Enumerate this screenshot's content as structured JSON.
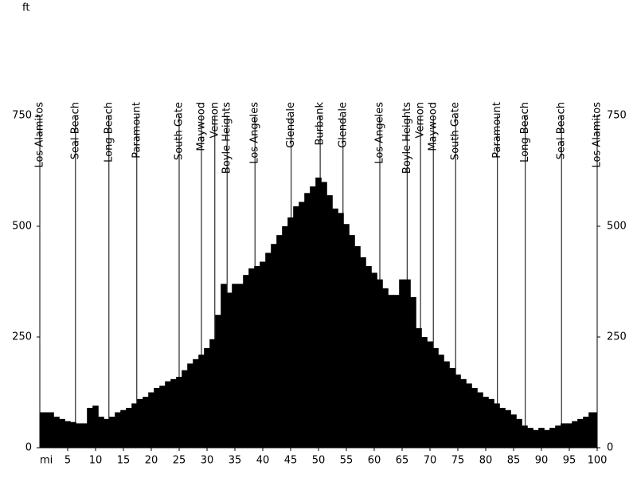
{
  "chart_data": {
    "type": "area",
    "xlabel": "mi",
    "ylabel": "ft",
    "xlim": [
      0,
      100
    ],
    "ylim": [
      0,
      750
    ],
    "xticks": [
      5,
      10,
      15,
      20,
      25,
      30,
      35,
      40,
      45,
      50,
      55,
      60,
      65,
      70,
      75,
      80,
      85,
      90,
      95,
      100
    ],
    "yticks": [
      0,
      250,
      500,
      750
    ],
    "color": "#000000",
    "x": [
      0,
      1,
      2,
      3,
      4,
      5,
      6,
      7,
      8,
      9,
      10,
      11,
      12,
      13,
      14,
      15,
      16,
      17,
      18,
      19,
      20,
      21,
      22,
      23,
      24,
      25,
      26,
      27,
      28,
      29,
      30,
      31,
      32,
      33,
      34,
      35,
      36,
      37,
      38,
      39,
      40,
      41,
      42,
      43,
      44,
      45,
      46,
      47,
      48,
      49,
      50,
      51,
      52,
      53,
      54,
      55,
      56,
      57,
      58,
      59,
      60,
      61,
      62,
      63,
      64,
      65,
      66,
      67,
      68,
      69,
      70,
      71,
      72,
      73,
      74,
      75,
      76,
      77,
      78,
      79,
      80,
      81,
      82,
      83,
      84,
      85,
      86,
      87,
      88,
      89,
      90,
      91,
      92,
      93,
      94,
      95,
      96,
      97,
      98,
      99,
      100
    ],
    "values": [
      80,
      80,
      80,
      70,
      65,
      60,
      58,
      55,
      55,
      90,
      95,
      70,
      65,
      70,
      80,
      85,
      90,
      100,
      110,
      115,
      125,
      135,
      140,
      150,
      155,
      160,
      175,
      190,
      200,
      210,
      225,
      245,
      300,
      370,
      350,
      370,
      370,
      390,
      405,
      410,
      420,
      440,
      460,
      480,
      500,
      520,
      545,
      555,
      575,
      590,
      610,
      600,
      570,
      540,
      530,
      505,
      480,
      455,
      430,
      410,
      395,
      380,
      360,
      345,
      345,
      380,
      380,
      340,
      270,
      250,
      240,
      225,
      210,
      195,
      180,
      165,
      155,
      145,
      135,
      125,
      115,
      110,
      100,
      90,
      85,
      75,
      65,
      50,
      45,
      40,
      45,
      40,
      45,
      50,
      55,
      55,
      60,
      65,
      70,
      80,
      80
    ],
    "markers": [
      {
        "label": "Los Alamitos",
        "x": 0
      },
      {
        "label": "Seal Beach",
        "x": 6.4
      },
      {
        "label": "Long Beach",
        "x": 12.4
      },
      {
        "label": "Paramount",
        "x": 17.4
      },
      {
        "label": "South Gate",
        "x": 25
      },
      {
        "label": "Maywood",
        "x": 29
      },
      {
        "label": "Vernon",
        "x": 31.4
      },
      {
        "label": "Boyle Heights",
        "x": 33.6
      },
      {
        "label": "Los Angeles",
        "x": 38.6
      },
      {
        "label": "Glendale",
        "x": 45.1
      },
      {
        "label": "Burbank",
        "x": 50.3
      },
      {
        "label": "Glendale",
        "x": 54.4
      },
      {
        "label": "Los Angeles",
        "x": 61
      },
      {
        "label": "Boyle Heights",
        "x": 65.9
      },
      {
        "label": "Vernon",
        "x": 68.3
      },
      {
        "label": "Maywood",
        "x": 70.6
      },
      {
        "label": "South Gate",
        "x": 74.6
      },
      {
        "label": "Paramount",
        "x": 82.1
      },
      {
        "label": "Long Beach",
        "x": 87.1
      },
      {
        "label": "Seal Beach",
        "x": 93.6
      },
      {
        "label": "Los Alamitos",
        "x": 100
      }
    ]
  }
}
